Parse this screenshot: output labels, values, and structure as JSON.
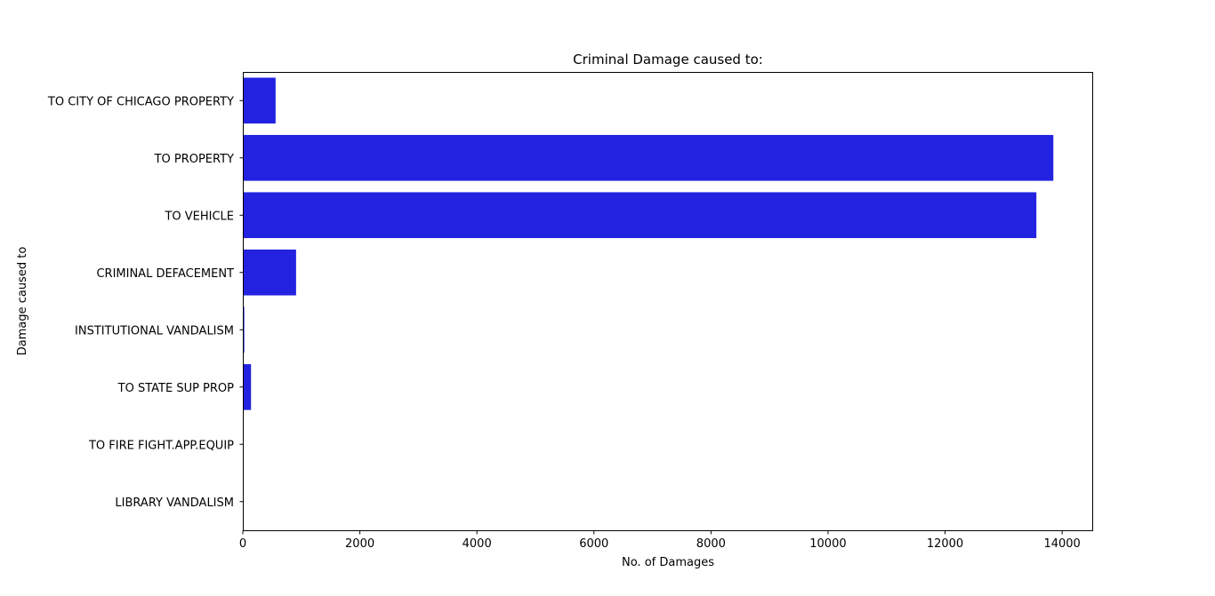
{
  "chart_data": {
    "type": "bar",
    "orientation": "horizontal",
    "title": "Criminal Damage caused to:",
    "xlabel": "No. of Damages",
    "ylabel": "Damage caused to",
    "categories": [
      "TO CITY OF CHICAGO PROPERTY",
      "TO PROPERTY",
      "TO VEHICLE",
      "CRIMINAL DEFACEMENT",
      "INSTITUTIONAL VANDALISM",
      "TO STATE SUP PROP",
      "TO FIRE FIGHT.APP.EQUIP",
      "LIBRARY VANDALISM"
    ],
    "values": [
      560,
      13850,
      13560,
      910,
      25,
      140,
      3,
      2
    ],
    "xlim": [
      0,
      14530
    ],
    "xticks": [
      0,
      2000,
      4000,
      6000,
      8000,
      10000,
      12000,
      14000
    ],
    "xtick_labels": [
      "0",
      "2000",
      "4000",
      "6000",
      "8000",
      "10000",
      "12000",
      "14000"
    ],
    "bar_color": "#2222e0",
    "grid": false,
    "legend": "none"
  }
}
